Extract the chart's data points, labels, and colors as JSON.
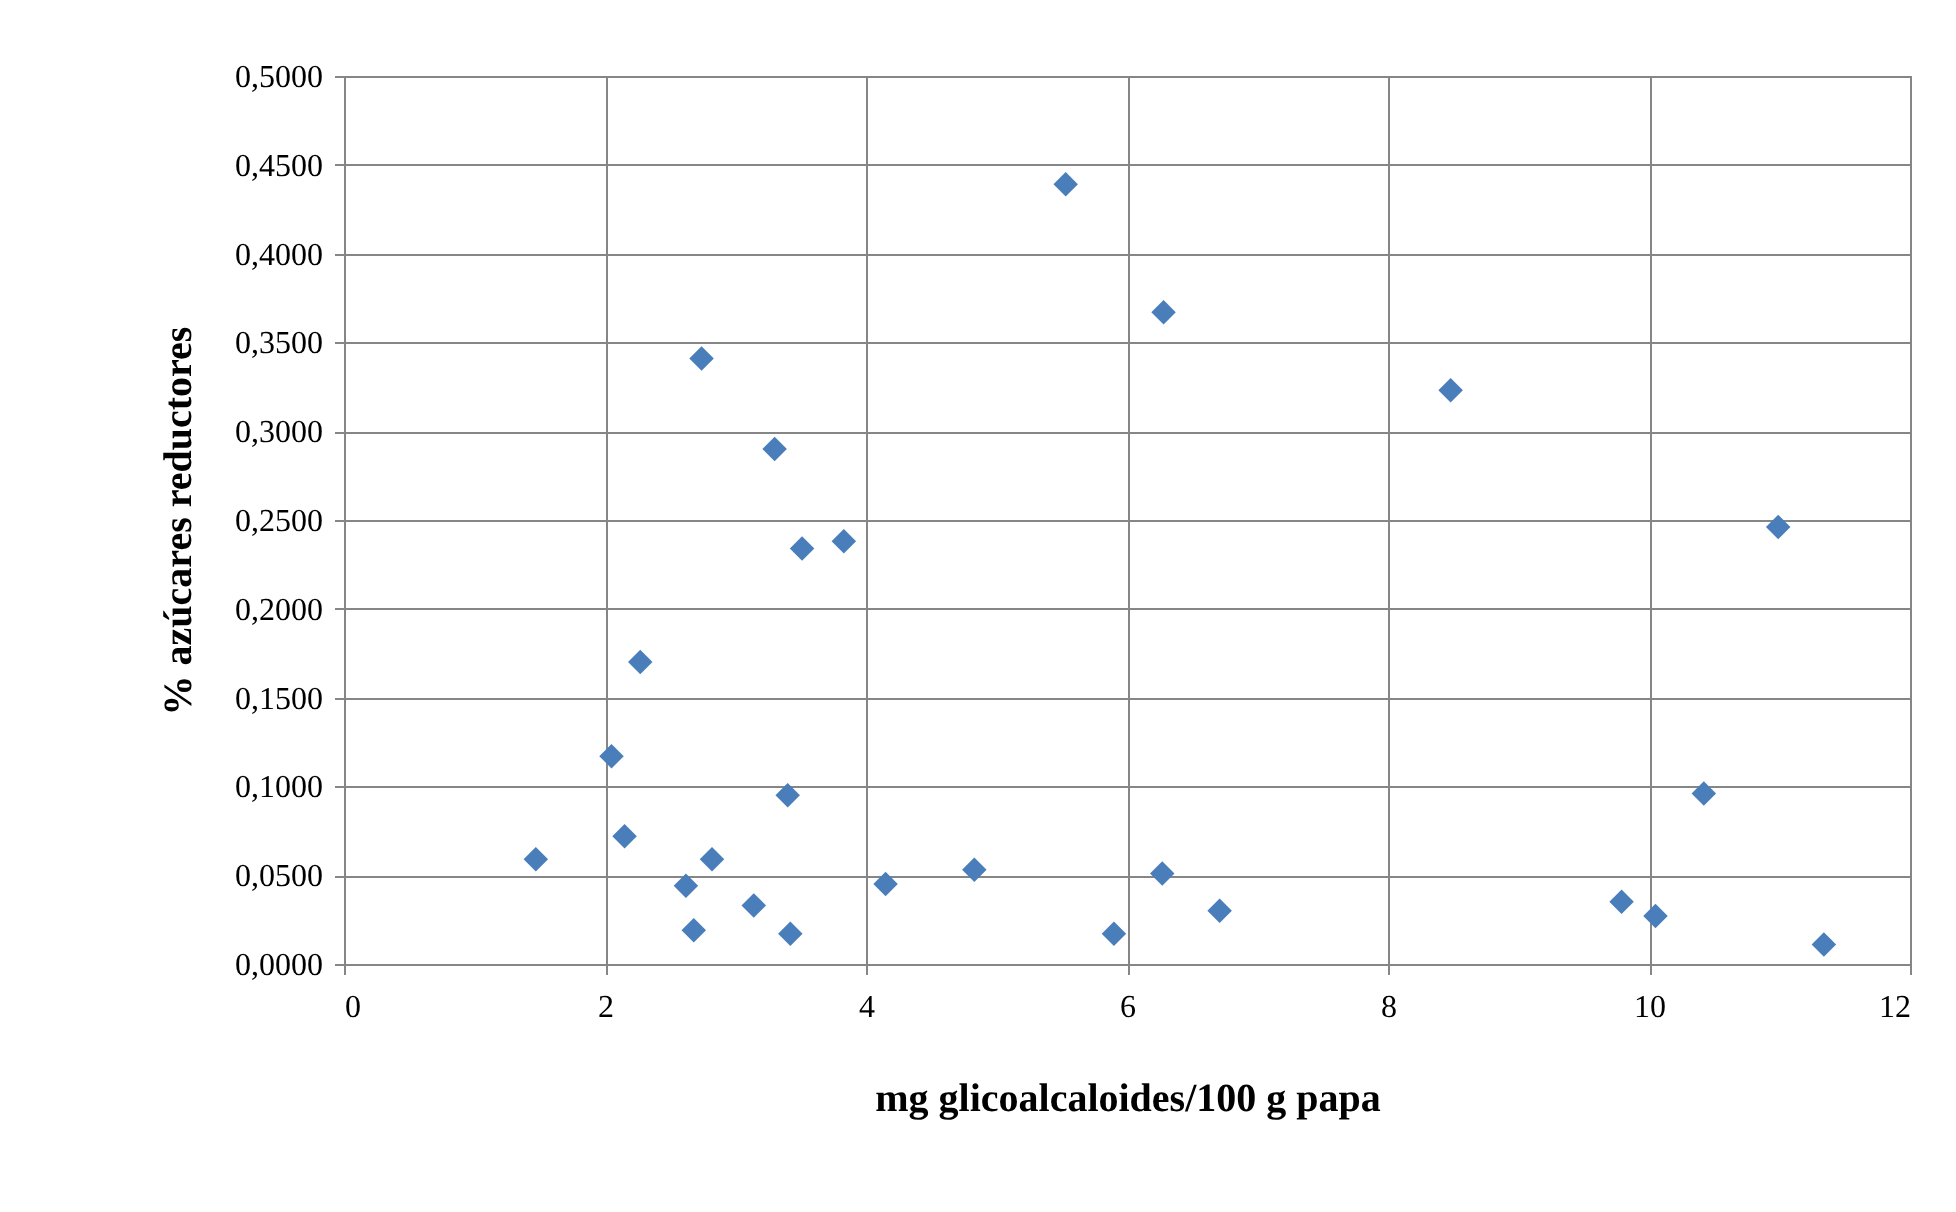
{
  "chart_data": {
    "type": "scatter",
    "xlabel": "mg glicoalcaloides/100 g papa",
    "ylabel": "%  azúcares reductores",
    "x": [
      1.47,
      2.05,
      2.15,
      2.27,
      2.62,
      2.68,
      2.82,
      2.74,
      3.14,
      3.3,
      3.4,
      3.42,
      3.51,
      3.83,
      4.15,
      4.83,
      5.53,
      5.9,
      6.27,
      6.28,
      6.71,
      8.48,
      9.79,
      10.05,
      10.42,
      10.99,
      11.34
    ],
    "series": [
      {
        "color": "#4a7ebb",
        "values": [
          0.059,
          0.117,
          0.072,
          0.17,
          0.044,
          0.019,
          0.059,
          0.341,
          0.033,
          0.29,
          0.095,
          0.017,
          0.234,
          0.238,
          0.045,
          0.053,
          0.439,
          0.017,
          0.051,
          0.367,
          0.03,
          0.323,
          0.035,
          0.027,
          0.096,
          0.246,
          0.011
        ]
      }
    ],
    "xlim": [
      0,
      12
    ],
    "xticks": [
      0,
      2,
      4,
      6,
      8,
      10,
      12
    ],
    "ylim": [
      0,
      0.5
    ],
    "yticks": [
      {
        "value": 0,
        "label": "0,0000"
      },
      {
        "value": 0.05,
        "label": "0,0500"
      },
      {
        "value": 0.1,
        "label": "0,1000"
      },
      {
        "value": 0.15,
        "label": "0,1500"
      },
      {
        "value": 0.2,
        "label": "0,2000"
      },
      {
        "value": 0.25,
        "label": "0,2500"
      },
      {
        "value": 0.3,
        "label": "0,3000"
      },
      {
        "value": 0.35,
        "label": "0,3500"
      },
      {
        "value": 0.4,
        "label": "0,4000"
      },
      {
        "value": 0.45,
        "label": "0,4500"
      },
      {
        "value": 0.5,
        "label": "0,5000"
      }
    ],
    "grid": true,
    "marker": "diamond"
  }
}
